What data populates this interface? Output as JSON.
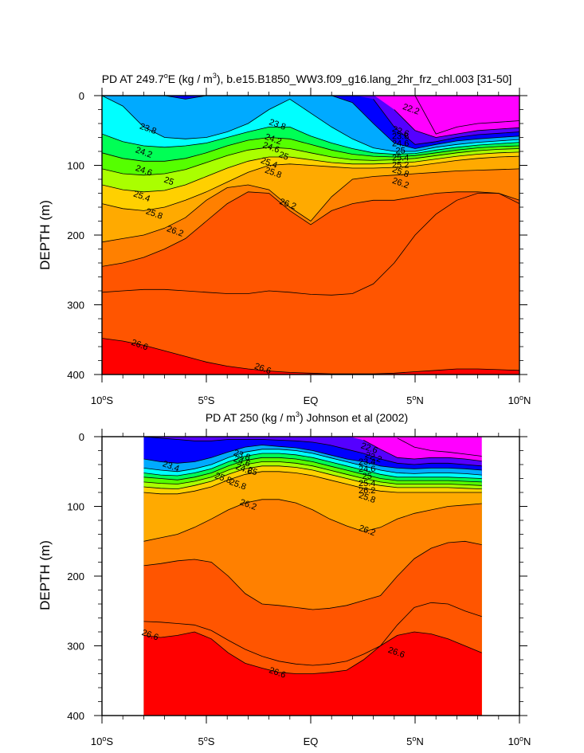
{
  "chart_data": [
    {
      "type": "contour",
      "title_main": "PD AT 249.7",
      "title_sup": "o",
      "title_rest": "E (kg / m",
      "title_units_sup": "3",
      "title_tail": "), b.e15.B1850_WW3.f09_g16.lang_2hr_frz_chl.003 [31-50]",
      "ylabel": "DEPTH (m)",
      "ylim": [
        0,
        400
      ],
      "y_ticks": [
        "0",
        "100",
        "200",
        "300",
        "400"
      ],
      "xlim": [
        -10,
        10
      ],
      "x_ticks": [
        {
          "num": "10",
          "deg": "o",
          "hemi": "S"
        },
        {
          "num": "5",
          "deg": "o",
          "hemi": "S"
        },
        {
          "num": "EQ",
          "deg": "",
          "hemi": ""
        },
        {
          "num": "5",
          "deg": "o",
          "hemi": "N"
        },
        {
          "num": "10",
          "deg": "o",
          "hemi": "N"
        }
      ],
      "data_lat_range": [
        -10,
        10
      ],
      "isopycnals": [
        {
          "level": 22.2,
          "depth": [
            null,
            null,
            null,
            null,
            null,
            null,
            null,
            null,
            null,
            null,
            null,
            null,
            null,
            null,
            null,
            0,
            55,
            45,
            40,
            38,
            36
          ]
        },
        {
          "level": 22.6,
          "depth": [
            null,
            null,
            null,
            null,
            null,
            null,
            null,
            null,
            null,
            null,
            null,
            null,
            null,
            null,
            20,
            50,
            60,
            55,
            50,
            48,
            46
          ]
        },
        {
          "level": 23.0,
          "depth": [
            null,
            null,
            null,
            null,
            null,
            null,
            null,
            null,
            null,
            null,
            null,
            null,
            null,
            5,
            45,
            70,
            66,
            60,
            56,
            54,
            52
          ]
        },
        {
          "level": 23.4,
          "depth": [
            0,
            0,
            0,
            0,
            5,
            0,
            0,
            0,
            0,
            0,
            0,
            0,
            10,
            40,
            68,
            76,
            70,
            65,
            62,
            60,
            58
          ]
        },
        {
          "level": 23.8,
          "depth": [
            0,
            15,
            45,
            60,
            62,
            60,
            52,
            40,
            20,
            5,
            25,
            45,
            62,
            75,
            80,
            80,
            74,
            70,
            67,
            65,
            63
          ]
        },
        {
          "level": 24.2,
          "depth": [
            55,
            66,
            72,
            74,
            72,
            68,
            60,
            52,
            45,
            45,
            58,
            68,
            76,
            82,
            84,
            83,
            78,
            74,
            71,
            69,
            67
          ]
        },
        {
          "level": 24.6,
          "depth": [
            82,
            90,
            94,
            94,
            90,
            82,
            72,
            64,
            60,
            62,
            70,
            78,
            84,
            87,
            88,
            86,
            82,
            78,
            75,
            73,
            72
          ]
        },
        {
          "level": 25.0,
          "depth": [
            105,
            112,
            114,
            112,
            106,
            96,
            86,
            78,
            74,
            76,
            82,
            88,
            92,
            93,
            92,
            90,
            86,
            82,
            79,
            77,
            76
          ]
        },
        {
          "level": 25.4,
          "depth": [
            128,
            135,
            138,
            136,
            128,
            116,
            104,
            94,
            88,
            88,
            92,
            96,
            98,
            98,
            97,
            95,
            91,
            87,
            84,
            82,
            81
          ]
        },
        {
          "level": 25.8,
          "depth": [
            155,
            162,
            165,
            160,
            150,
            138,
            124,
            110,
            100,
            98,
            100,
            102,
            104,
            104,
            103,
            101,
            97,
            93,
            90,
            88,
            87
          ]
        },
        {
          "level": 26.2,
          "depth": [
            210,
            205,
            200,
            190,
            175,
            150,
            132,
            128,
            135,
            160,
            180,
            145,
            120,
            116,
            114,
            112,
            110,
            108,
            107,
            106,
            105
          ]
        },
        {
          "level": 26.4,
          "depth": [
            245,
            240,
            232,
            220,
            205,
            180,
            155,
            138,
            140,
            165,
            185,
            165,
            155,
            150,
            150,
            145,
            140,
            138,
            138,
            140,
            150
          ]
        },
        {
          "level": 26.5,
          "depth": [
            282,
            280,
            278,
            278,
            280,
            282,
            284,
            284,
            280,
            282,
            285,
            286,
            284,
            270,
            240,
            200,
            170,
            150,
            140,
            140,
            155
          ]
        },
        {
          "level": 26.6,
          "depth": [
            348,
            352,
            358,
            366,
            374,
            382,
            388,
            392,
            395,
            397,
            398,
            399,
            399,
            399,
            398,
            396,
            394,
            392,
            392,
            393,
            394
          ]
        }
      ],
      "labels": [
        {
          "text": "23.8",
          "lat": -7.8,
          "depth": 48
        },
        {
          "text": "23.8",
          "lat": -1.6,
          "depth": 42
        },
        {
          "text": "24.2",
          "lat": -8.0,
          "depth": 82
        },
        {
          "text": "24.2",
          "lat": -1.8,
          "depth": 63
        },
        {
          "text": "24.6",
          "lat": -8.0,
          "depth": 108
        },
        {
          "text": "24.6",
          "lat": -1.9,
          "depth": 75
        },
        {
          "text": "25",
          "lat": -6.8,
          "depth": 123
        },
        {
          "text": "25",
          "lat": -1.3,
          "depth": 87
        },
        {
          "text": "25.4",
          "lat": -8.1,
          "depth": 145
        },
        {
          "text": "25.4",
          "lat": -2.0,
          "depth": 97
        },
        {
          "text": "25.8",
          "lat": -7.5,
          "depth": 170
        },
        {
          "text": "25.8",
          "lat": -1.8,
          "depth": 111
        },
        {
          "text": "26.2",
          "lat": -6.5,
          "depth": 195
        },
        {
          "text": "26.2",
          "lat": -1.1,
          "depth": 156
        },
        {
          "text": "26.6",
          "lat": -8.2,
          "depth": 358
        },
        {
          "text": "26.6",
          "lat": -2.3,
          "depth": 392
        },
        {
          "text": "22.2",
          "lat": 4.8,
          "depth": 20
        },
        {
          "text": "22.6",
          "lat": 4.3,
          "depth": 52
        },
        {
          "text": "26.2",
          "lat": 4.3,
          "depth": 126
        },
        {
          "text": "25.8",
          "lat": 4.3,
          "depth": 110
        }
      ],
      "extra_labels_stack": [
        "23.8",
        "24.6",
        "25",
        "25.4",
        "25.2"
      ]
    },
    {
      "type": "contour",
      "title_main": "PD AT 250 (kg / m",
      "title_units_sup": "3",
      "title_tail": ") Johnson et al (2002)",
      "ylabel": "DEPTH (m)",
      "ylim": [
        0,
        400
      ],
      "y_ticks": [
        "0",
        "100",
        "200",
        "300",
        "400"
      ],
      "xlim": [
        -10,
        10
      ],
      "x_ticks": [
        {
          "num": "10",
          "deg": "o",
          "hemi": "S"
        },
        {
          "num": "5",
          "deg": "o",
          "hemi": "S"
        },
        {
          "num": "EQ",
          "deg": "",
          "hemi": ""
        },
        {
          "num": "5",
          "deg": "o",
          "hemi": "N"
        },
        {
          "num": "10",
          "deg": "o",
          "hemi": "N"
        }
      ],
      "data_lat_range": [
        -8,
        8.2
      ],
      "isopycnals": [
        {
          "level": 22.2,
          "depth": [
            null,
            null,
            null,
            null,
            null,
            null,
            null,
            null,
            null,
            null,
            null,
            null,
            null,
            null,
            null,
            2,
            15,
            20,
            22,
            25,
            28
          ]
        },
        {
          "level": 22.6,
          "depth": [
            null,
            null,
            null,
            null,
            null,
            null,
            null,
            null,
            null,
            null,
            null,
            null,
            null,
            5,
            18,
            30,
            32,
            30,
            30,
            32,
            35
          ]
        },
        {
          "level": 23.0,
          "depth": [
            0,
            2,
            4,
            6,
            6,
            4,
            4,
            4,
            5,
            6,
            8,
            12,
            18,
            24,
            32,
            38,
            40,
            38,
            38,
            40,
            42
          ]
        },
        {
          "level": 23.4,
          "depth": [
            32,
            36,
            38,
            36,
            30,
            22,
            15,
            12,
            14,
            16,
            20,
            26,
            32,
            36,
            42,
            45,
            46,
            45,
            45,
            46,
            48
          ]
        },
        {
          "level": 23.8,
          "depth": [
            45,
            48,
            50,
            46,
            40,
            30,
            22,
            18,
            18,
            20,
            24,
            30,
            36,
            42,
            48,
            52,
            53,
            52,
            52,
            53,
            55
          ]
        },
        {
          "level": 24.2,
          "depth": [
            52,
            55,
            56,
            52,
            46,
            36,
            28,
            24,
            24,
            26,
            30,
            36,
            42,
            48,
            54,
            58,
            58,
            58,
            58,
            59,
            60
          ]
        },
        {
          "level": 24.6,
          "depth": [
            58,
            60,
            62,
            58,
            52,
            42,
            34,
            30,
            30,
            32,
            36,
            42,
            48,
            54,
            60,
            63,
            63,
            63,
            63,
            64,
            65
          ]
        },
        {
          "level": 25.0,
          "depth": [
            65,
            67,
            68,
            64,
            58,
            48,
            40,
            36,
            36,
            38,
            42,
            48,
            54,
            60,
            65,
            68,
            68,
            68,
            68,
            69,
            70
          ]
        },
        {
          "level": 25.4,
          "depth": [
            72,
            74,
            75,
            70,
            64,
            54,
            46,
            42,
            42,
            44,
            48,
            54,
            60,
            66,
            70,
            73,
            73,
            73,
            73,
            74,
            75
          ]
        },
        {
          "level": 25.8,
          "depth": [
            80,
            82,
            82,
            78,
            72,
            62,
            54,
            50,
            50,
            52,
            56,
            62,
            68,
            74,
            78,
            80,
            80,
            80,
            80,
            80,
            80
          ]
        },
        {
          "level": 26.2,
          "depth": [
            150,
            145,
            140,
            130,
            118,
            105,
            95,
            90,
            90,
            95,
            105,
            118,
            128,
            136,
            130,
            118,
            110,
            105,
            100,
            98,
            96
          ]
        },
        {
          "level": 26.4,
          "depth": [
            185,
            182,
            178,
            176,
            180,
            200,
            225,
            240,
            242,
            245,
            248,
            246,
            242,
            235,
            228,
            200,
            175,
            160,
            152,
            150,
            155
          ]
        },
        {
          "level": 26.5,
          "depth": [
            265,
            266,
            268,
            270,
            278,
            292,
            305,
            315,
            322,
            326,
            328,
            326,
            322,
            312,
            300,
            270,
            245,
            238,
            240,
            250,
            258
          ]
        },
        {
          "level": 26.6,
          "depth": [
            285,
            288,
            285,
            280,
            290,
            310,
            325,
            332,
            338,
            340,
            340,
            338,
            335,
            320,
            300,
            285,
            280,
            283,
            290,
            300,
            310
          ]
        }
      ],
      "labels": [
        {
          "text": "23.4",
          "lat": -6.7,
          "depth": 43
        },
        {
          "text": "23.8",
          "lat": -3.3,
          "depth": 27
        },
        {
          "text": "24.6",
          "lat": -3.3,
          "depth": 36
        },
        {
          "text": "24.6",
          "lat": -3.2,
          "depth": 47
        },
        {
          "text": "25",
          "lat": -2.8,
          "depth": 50
        },
        {
          "text": "25.8",
          "lat": -4.2,
          "depth": 60
        },
        {
          "text": "25.8",
          "lat": -3.5,
          "depth": 69
        },
        {
          "text": "26.2",
          "lat": -3.0,
          "depth": 98
        },
        {
          "text": "26.2",
          "lat": 2.7,
          "depth": 135
        },
        {
          "text": "26.6",
          "lat": -7.7,
          "depth": 285
        },
        {
          "text": "26.6",
          "lat": -1.6,
          "depth": 339
        },
        {
          "text": "26.6",
          "lat": 4.1,
          "depth": 310
        },
        {
          "text": "22.6",
          "lat": 2.8,
          "depth": 17
        },
        {
          "text": "22.2",
          "lat": 3.0,
          "depth": 30
        },
        {
          "text": "25.8",
          "lat": 2.7,
          "depth": 88
        }
      ],
      "extra_labels_stack": [
        "23.4",
        "24.6",
        "25",
        "25.4",
        "26.2"
      ]
    }
  ],
  "colormap": [
    "#ff00ff",
    "#aa00ff",
    "#5500ff",
    "#0000ff",
    "#0055ff",
    "#00aaff",
    "#00ffff",
    "#00ffaa",
    "#00ff55",
    "#00ff00",
    "#55ff00",
    "#aaff00",
    "#ffff00",
    "#ffd000",
    "#ffaa00",
    "#ff8000",
    "#ff5500",
    "#ff0000",
    "#cc0000"
  ]
}
